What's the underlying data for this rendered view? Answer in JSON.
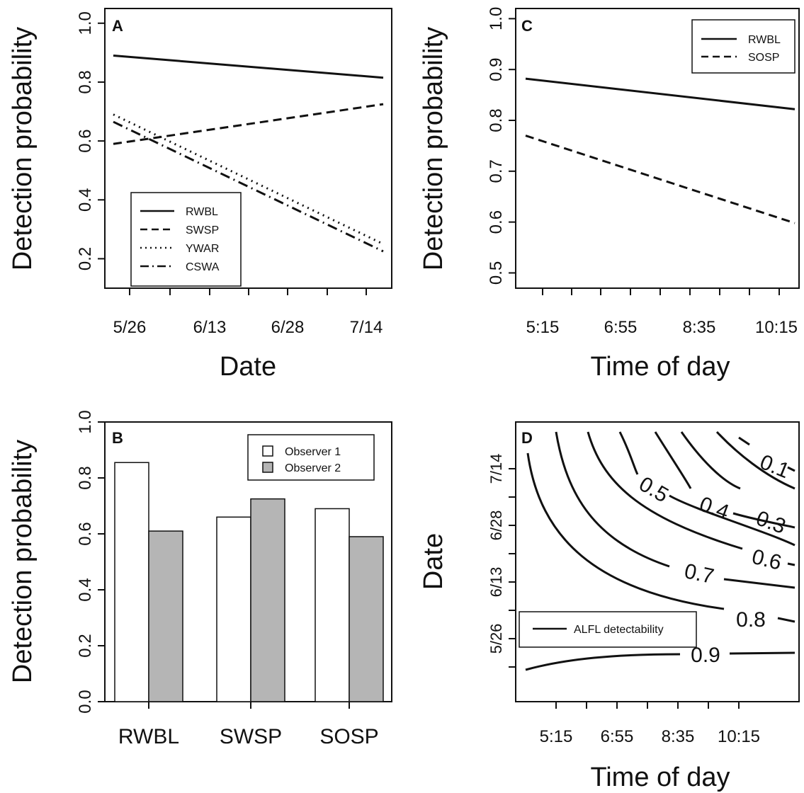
{
  "chart_data": [
    {
      "panel": "A",
      "type": "line",
      "xlabel": "Date",
      "ylabel": "Detection probability",
      "x_ticks": [
        "5/26",
        "6/13",
        "6/28",
        "7/14"
      ],
      "yticks": [
        "0.2",
        "0.4",
        "0.6",
        "0.8",
        "1.0"
      ],
      "ylim": [
        0.1,
        1.05
      ],
      "legend": [
        "RWBL",
        "SWSP",
        "YWAR",
        "CSWA"
      ],
      "legend_position": "bottom-left",
      "series": [
        {
          "name": "RWBL",
          "linestyle": "solid",
          "x": [
            "5/26",
            "7/14"
          ],
          "y": [
            0.89,
            0.815
          ]
        },
        {
          "name": "SWSP",
          "linestyle": "dashed",
          "x": [
            "5/26",
            "7/14"
          ],
          "y": [
            0.59,
            0.725
          ]
        },
        {
          "name": "YWAR",
          "linestyle": "dotted",
          "x": [
            "5/26",
            "7/14"
          ],
          "y": [
            0.69,
            0.25
          ]
        },
        {
          "name": "CSWA",
          "linestyle": "dotdash",
          "x": [
            "5/26",
            "7/14"
          ],
          "y": [
            0.665,
            0.225
          ]
        }
      ]
    },
    {
      "panel": "B",
      "type": "bar",
      "ylabel": "Detection probability",
      "categories": [
        "RWBL",
        "SWSP",
        "SOSP"
      ],
      "yticks": [
        "0.0",
        "0.2",
        "0.4",
        "0.6",
        "0.8",
        "1.0"
      ],
      "ylim": [
        0,
        1.0
      ],
      "legend": [
        "Observer 1",
        "Observer 2"
      ],
      "legend_position": "top-right",
      "series": [
        {
          "name": "Observer 1",
          "color": "#ffffff",
          "values": [
            0.855,
            0.66,
            0.69
          ]
        },
        {
          "name": "Observer 2",
          "color": "#b5b5b5",
          "values": [
            0.61,
            0.725,
            0.59
          ]
        }
      ]
    },
    {
      "panel": "C",
      "type": "line",
      "xlabel": "Time of day",
      "ylabel": "Detection probability",
      "x_ticks": [
        "5:15",
        "6:55",
        "8:35",
        "10:15"
      ],
      "yticks": [
        "0.5",
        "0.6",
        "0.7",
        "0.8",
        "0.9",
        "1.0"
      ],
      "ylim": [
        0.47,
        1.02
      ],
      "legend": [
        "RWBL",
        "SOSP"
      ],
      "legend_position": "top-right",
      "series": [
        {
          "name": "RWBL",
          "linestyle": "solid",
          "x": [
            "5:15",
            "10:15"
          ],
          "y": [
            0.882,
            0.822
          ]
        },
        {
          "name": "SOSP",
          "linestyle": "dashed",
          "x": [
            "5:15",
            "10:15"
          ],
          "y": [
            0.77,
            0.598
          ]
        }
      ]
    },
    {
      "panel": "D",
      "type": "contour",
      "xlabel": "Time of day",
      "ylabel": "Date",
      "x_ticks": [
        "5:15",
        "6:55",
        "8:35",
        "10:15"
      ],
      "y_ticks": [
        "5/26",
        "6/13",
        "6/28",
        "7/14"
      ],
      "legend": [
        "ALFL detectability"
      ],
      "legend_position": "bottom-left",
      "contour_levels": [
        "0.1",
        "0.3",
        "0.4",
        "0.5",
        "0.6",
        "0.7",
        "0.8",
        "0.9"
      ]
    }
  ]
}
